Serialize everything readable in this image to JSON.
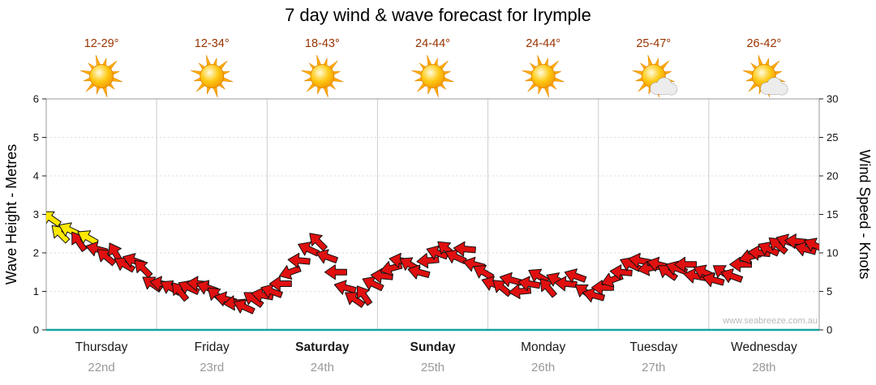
{
  "title": "7 day wind & wave forecast for Irymple",
  "watermark": "www.seabreeze.com.au",
  "axes": {
    "left_label": "Wave Height - Metres",
    "right_label": "Wind Speed - Knots",
    "left_ticks": [
      0,
      1,
      2,
      3,
      4,
      5,
      6
    ],
    "right_ticks": [
      0,
      5,
      10,
      15,
      20,
      25,
      30
    ],
    "left_range_metres": [
      0,
      6
    ],
    "right_range_knots": [
      0,
      30
    ]
  },
  "days": [
    {
      "name": "Thursday",
      "date": "22nd",
      "temp": "12-29°",
      "icon": "sunny",
      "bold": false
    },
    {
      "name": "Friday",
      "date": "23rd",
      "temp": "12-34°",
      "icon": "sunny",
      "bold": false
    },
    {
      "name": "Saturday",
      "date": "24th",
      "temp": "18-43°",
      "icon": "sunny",
      "bold": true
    },
    {
      "name": "Sunday",
      "date": "25th",
      "temp": "24-44°",
      "icon": "sunny",
      "bold": true
    },
    {
      "name": "Monday",
      "date": "26th",
      "temp": "24-44°",
      "icon": "sunny",
      "bold": false
    },
    {
      "name": "Tuesday",
      "date": "27th",
      "temp": "25-47°",
      "icon": "partly-cloudy",
      "bold": false
    },
    {
      "name": "Wednesday",
      "date": "28th",
      "temp": "26-42°",
      "icon": "partly-cloudy",
      "bold": false
    }
  ],
  "chart_data": {
    "type": "scatter",
    "series_name": "Wind speed shown as direction arrows",
    "samples_per_day": 12,
    "speeds_knots": [
      14.5,
      12.5,
      13,
      11.5,
      12,
      10.5,
      9.5,
      10,
      8.5,
      9,
      8,
      6,
      6,
      5.5,
      5,
      5.5,
      6,
      5.5,
      4.5,
      4,
      3.5,
      3,
      4,
      4.5,
      5,
      6,
      7.5,
      9,
      10.5,
      11.5,
      9.5,
      7.5,
      5.5,
      4,
      4.5,
      6,
      7,
      8,
      9,
      8.5,
      7.5,
      9,
      10,
      10.5,
      9.5,
      10.5,
      8.5,
      7.5,
      6,
      5.5,
      6.5,
      5,
      6,
      7,
      5.5,
      6.5,
      6,
      7,
      5,
      4.5,
      5.5,
      6.5,
      7.5,
      8.5,
      9,
      8,
      8.5,
      7.5,
      8,
      8.5,
      7,
      7.5,
      6.5,
      7.5,
      7,
      8.5,
      9.5,
      10,
      10.5,
      11,
      11.5,
      11.5,
      10.5,
      11
    ],
    "directions_deg": [
      215,
      225,
      205,
      235,
      210,
      195,
      220,
      240,
      210,
      200,
      225,
      215,
      190,
      210,
      230,
      205,
      185,
      200,
      220,
      195,
      175,
      205,
      215,
      190,
      200,
      180,
      160,
      185,
      205,
      225,
      200,
      180,
      195,
      215,
      235,
      205,
      185,
      165,
      190,
      210,
      195,
      175,
      200,
      220,
      205,
      185,
      195,
      210,
      200,
      220,
      195,
      175,
      190,
      210,
      230,
      205,
      185,
      200,
      215,
      195,
      180,
      160,
      185,
      205,
      190,
      170,
      195,
      215,
      200,
      180,
      190,
      205,
      195,
      215,
      200,
      180,
      165,
      185,
      205,
      220,
      200,
      185,
      195,
      205
    ],
    "color_rule": {
      "threshold_knots": 12,
      "at_or_above": "#ffe800",
      "below": "#e01010"
    },
    "ylim_knots": [
      0,
      30
    ],
    "wave_axis_lim_metres": [
      0,
      6
    ]
  },
  "colors": {
    "arrow_red": "#e01010",
    "arrow_yellow": "#ffe800",
    "arrow_outline": "#111111",
    "baseline_teal": "#16a3a3",
    "temp_text": "#993300",
    "grid_vertical": "#cccccc",
    "grid_horizontal": "#dddddd",
    "frame": "#999999",
    "tick_text": "#111111",
    "day_name_text": "#1a1a1a",
    "date_text": "#999999",
    "sun_ray": "#ffaa00",
    "sun_edge": "#e08200",
    "cloud_fill": "#ececec",
    "cloud_edge": "#999999"
  }
}
